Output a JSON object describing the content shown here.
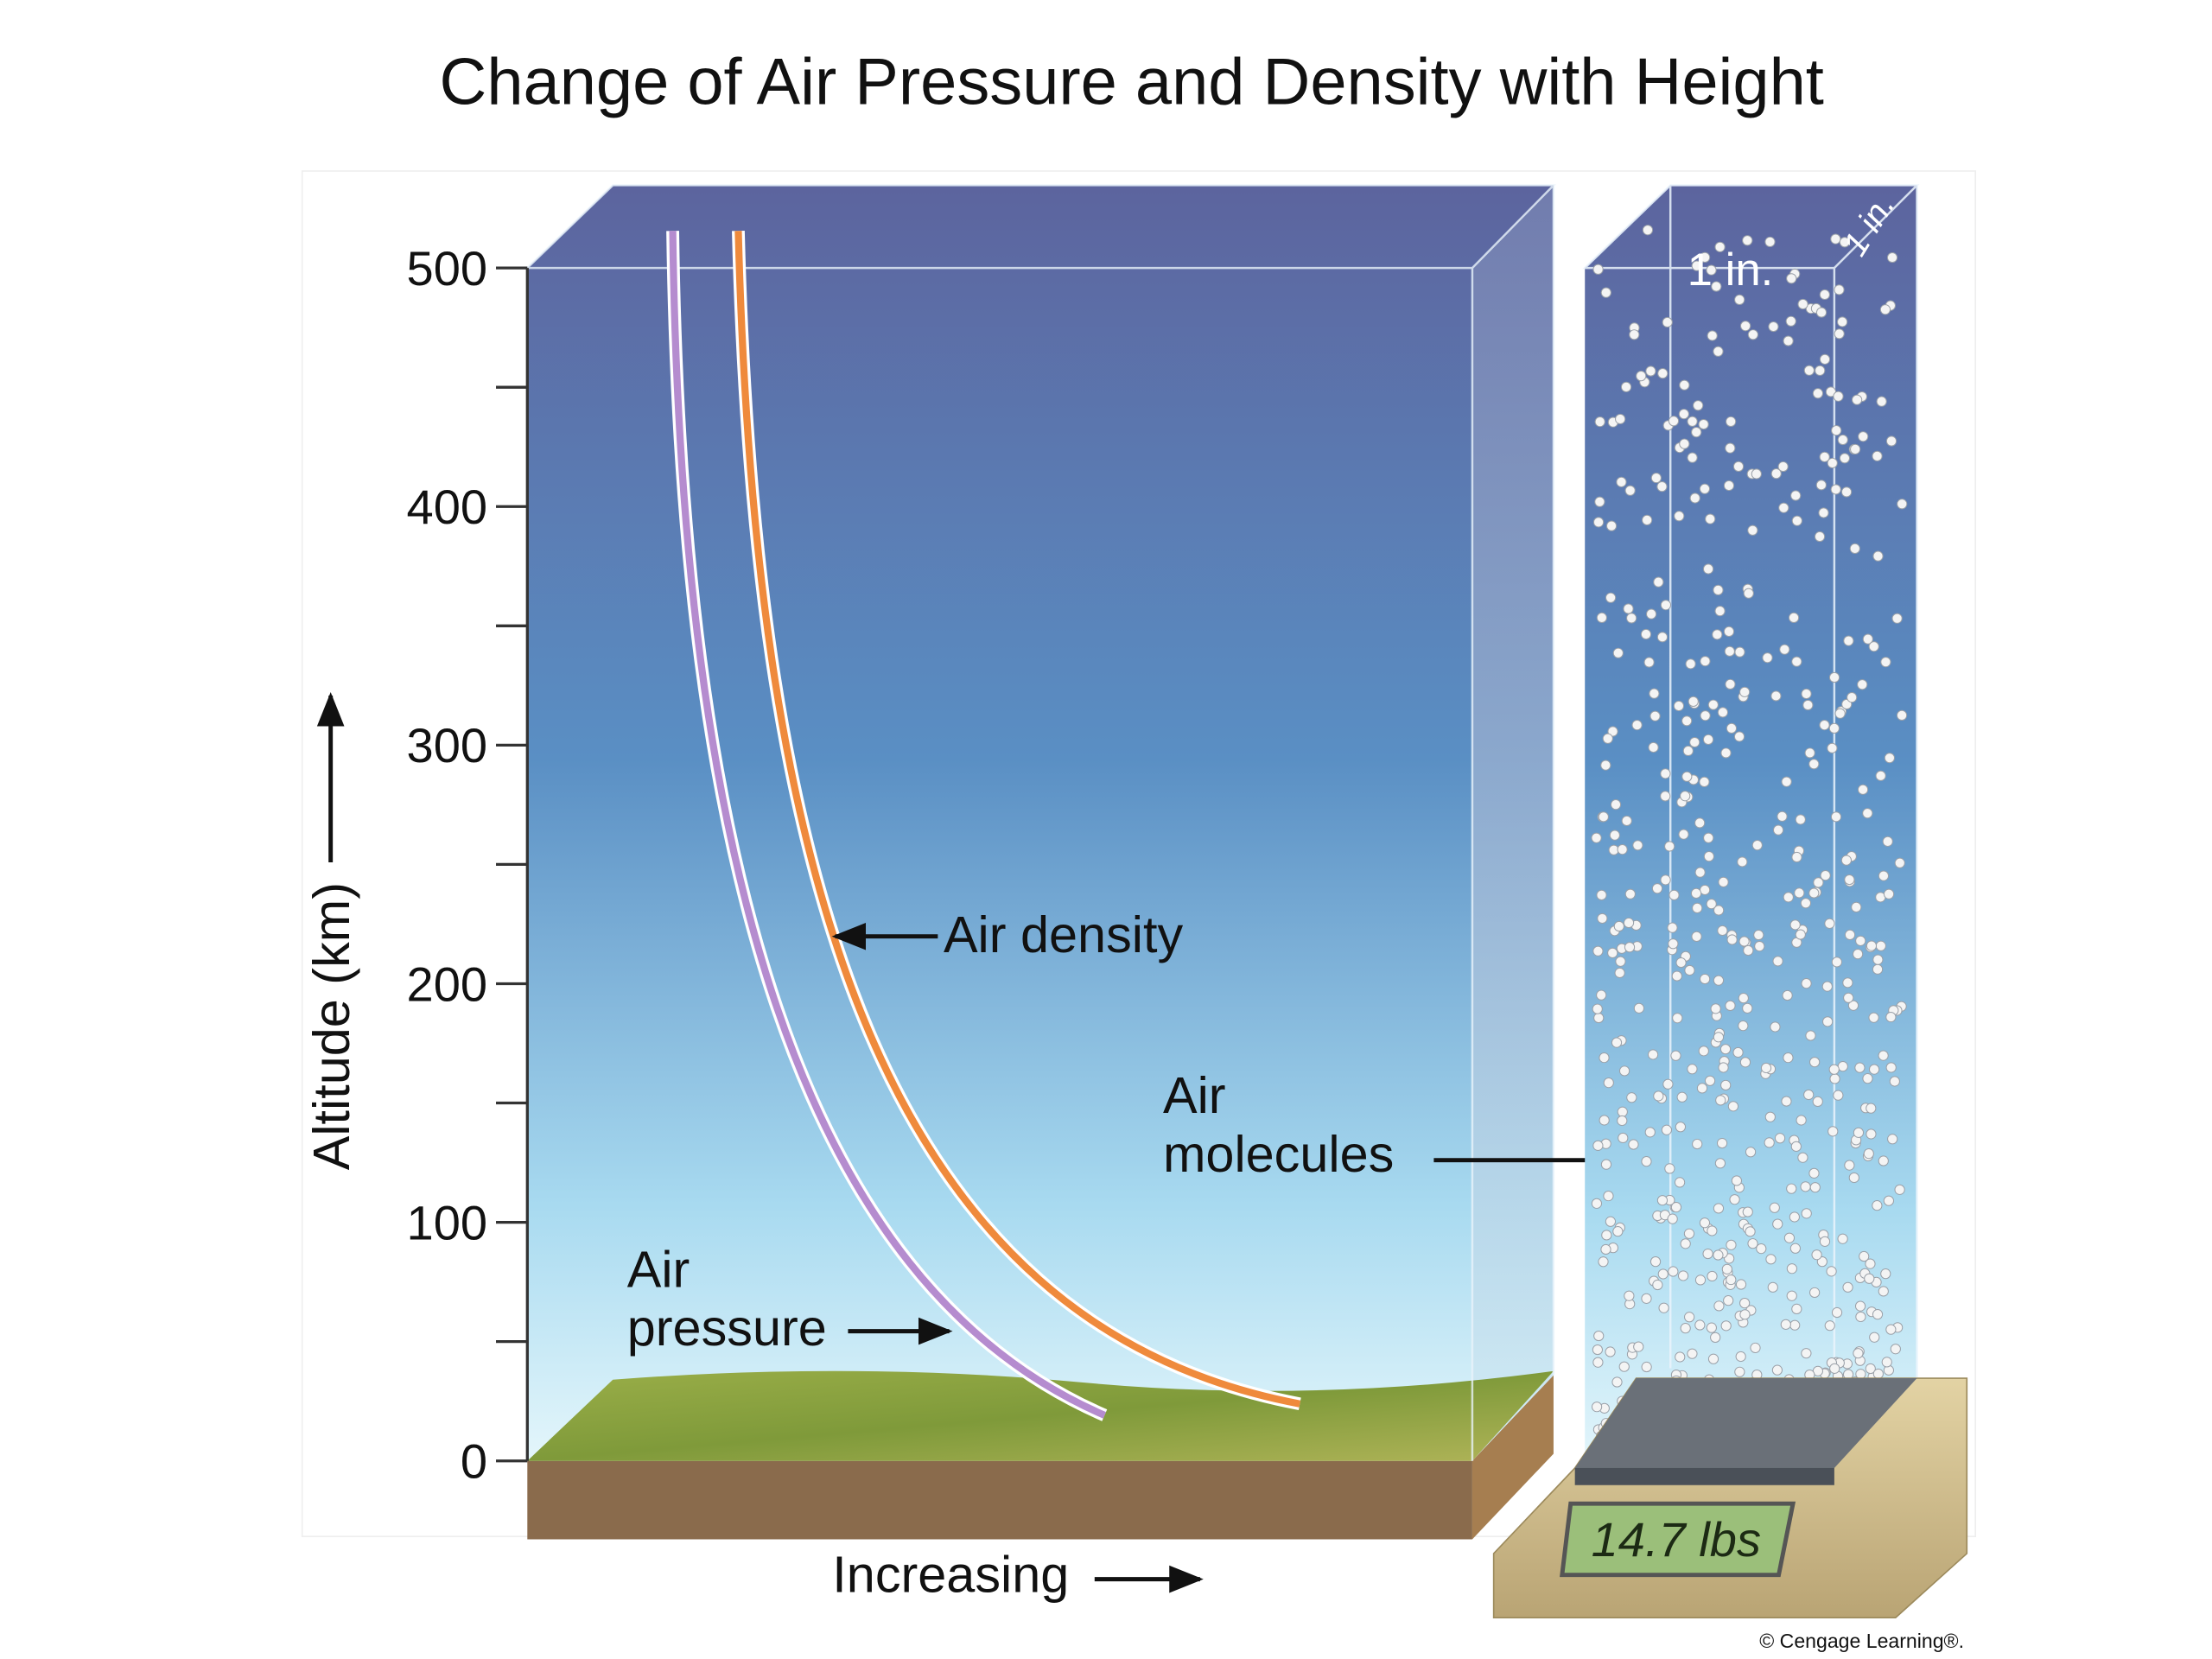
{
  "title": "Change of Air Pressure and Density with Height",
  "axis": {
    "label": "Altitude (km)",
    "ticks": [
      "0",
      "100",
      "200",
      "300",
      "400",
      "500"
    ],
    "x_label": "Increasing"
  },
  "labels": {
    "air_density": "Air density",
    "air_pressure": [
      "Air",
      "pressure"
    ],
    "air_molecules": [
      "Air",
      "molecules"
    ]
  },
  "column": {
    "width": "1 in.",
    "depth": "1 in.",
    "scale_reading": "14.7 lbs"
  },
  "credit": "© Cengage Learning®."
}
